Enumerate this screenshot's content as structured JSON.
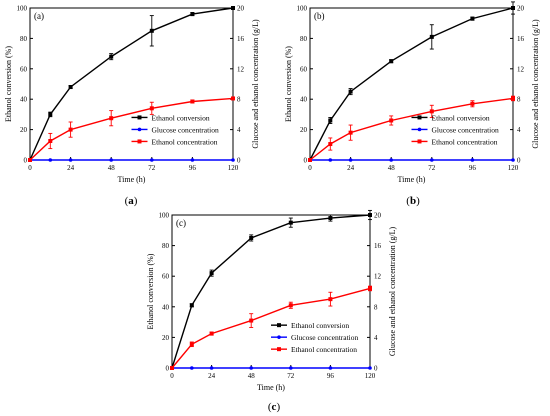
{
  "chart_data": [
    {
      "type": "line",
      "panel_tag": "(a)",
      "caption_letter": "a",
      "caption_open": "(",
      "caption_close": ")",
      "x": [
        0,
        12,
        24,
        48,
        72,
        96,
        120
      ],
      "xticks": [
        0,
        24,
        48,
        72,
        96,
        120
      ],
      "xlim": [
        0,
        120
      ],
      "xlabel": "Time (h)",
      "ylabel": "Ethanol conversion (%)",
      "ylim": [
        0,
        100
      ],
      "yticks": [
        0,
        20,
        40,
        60,
        80,
        100
      ],
      "y2label": "Glucose and  ethanol concentration (g/L)",
      "y2lim": [
        0,
        20
      ],
      "y2ticks": [
        0,
        4,
        8,
        12,
        16,
        20
      ],
      "legend_position": "center-right",
      "grid": false,
      "series": [
        {
          "name": "Ethanol conversion",
          "axis": "left",
          "color": "#000000",
          "marker": "square",
          "values": [
            0,
            30,
            48,
            68,
            85,
            96,
            100
          ],
          "errors": [
            0,
            1.5,
            1,
            2,
            10,
            1,
            0.5
          ]
        },
        {
          "name": "Glucose concentration",
          "axis": "right",
          "color": "#0000ff",
          "marker": "circle",
          "values": [
            0,
            0,
            0,
            0,
            0,
            0,
            0
          ],
          "errors": [
            0,
            0,
            0,
            0,
            0,
            0,
            0
          ]
        },
        {
          "name": "Ethanol concentration",
          "axis": "right",
          "color": "#ff0000",
          "marker": "square",
          "values": [
            0,
            2.5,
            4,
            5.5,
            6.8,
            7.7,
            8.1
          ],
          "errors": [
            0,
            1,
            1,
            1,
            0.8,
            0.2,
            0.1
          ]
        }
      ]
    },
    {
      "type": "line",
      "panel_tag": "(b)",
      "caption_letter": "b",
      "caption_open": "(",
      "caption_close": ")",
      "x": [
        0,
        12,
        24,
        48,
        72,
        96,
        120
      ],
      "xticks": [
        0,
        24,
        48,
        72,
        96,
        120
      ],
      "xlim": [
        0,
        120
      ],
      "xlabel": "Time (h)",
      "ylabel": "Ethanol conversion (%)",
      "ylim": [
        0,
        100
      ],
      "yticks": [
        0,
        20,
        40,
        60,
        80,
        100
      ],
      "y2label": "Glucose and  ethanol concentration (g/L)",
      "y2lim": [
        0,
        20
      ],
      "y2ticks": [
        0,
        4,
        8,
        12,
        16,
        20
      ],
      "legend_position": "center-right",
      "grid": false,
      "series": [
        {
          "name": "Ethanol conversion",
          "axis": "left",
          "color": "#000000",
          "marker": "square",
          "values": [
            0,
            26,
            45,
            65,
            81,
            93,
            100
          ],
          "errors": [
            0,
            2,
            2,
            1,
            8,
            1,
            4
          ]
        },
        {
          "name": "Glucose concentration",
          "axis": "right",
          "color": "#0000ff",
          "marker": "circle",
          "values": [
            0,
            0,
            0,
            0,
            0,
            0,
            0
          ],
          "errors": [
            0,
            0,
            0,
            0,
            0,
            0,
            0
          ]
        },
        {
          "name": "Ethanol concentration",
          "axis": "right",
          "color": "#ff0000",
          "marker": "square",
          "values": [
            0,
            2.1,
            3.6,
            5.2,
            6.4,
            7.4,
            8.1
          ],
          "errors": [
            0,
            0.8,
            1,
            0.6,
            0.8,
            0.4,
            0.3
          ]
        }
      ]
    },
    {
      "type": "line",
      "panel_tag": "(c)",
      "caption_letter": "c",
      "caption_open": "(",
      "caption_close": ")",
      "x": [
        0,
        12,
        24,
        48,
        72,
        96,
        120
      ],
      "xticks": [
        0,
        24,
        48,
        72,
        96,
        120
      ],
      "xlim": [
        0,
        120
      ],
      "xlabel": "Time (h)",
      "ylabel": "Ethanol conversion (%)",
      "ylim": [
        0,
        100
      ],
      "yticks": [
        0,
        20,
        40,
        60,
        80,
        100
      ],
      "y2label": "Glucose and  ethanol concentration (g/L)",
      "y2lim": [
        0,
        20
      ],
      "y2ticks": [
        0,
        4,
        8,
        12,
        16,
        20
      ],
      "legend_position": "center-right",
      "grid": false,
      "series": [
        {
          "name": "Ethanol conversion",
          "axis": "left",
          "color": "#000000",
          "marker": "square",
          "values": [
            0,
            41,
            62,
            85,
            95,
            98,
            100
          ],
          "errors": [
            0,
            1,
            2,
            2,
            3,
            2,
            3
          ]
        },
        {
          "name": "Glucose concentration",
          "axis": "right",
          "color": "#0000ff",
          "marker": "circle",
          "values": [
            0,
            0,
            0,
            0,
            0,
            0,
            0
          ],
          "errors": [
            0,
            0,
            0,
            0,
            0,
            0,
            0
          ]
        },
        {
          "name": "Ethanol concentration",
          "axis": "right",
          "color": "#ff0000",
          "marker": "square",
          "values": [
            0,
            3.1,
            4.5,
            6.2,
            8.2,
            9.0,
            10.4
          ],
          "errors": [
            0,
            0.3,
            0.2,
            0.9,
            0.4,
            0.9,
            0.3
          ]
        }
      ]
    }
  ]
}
